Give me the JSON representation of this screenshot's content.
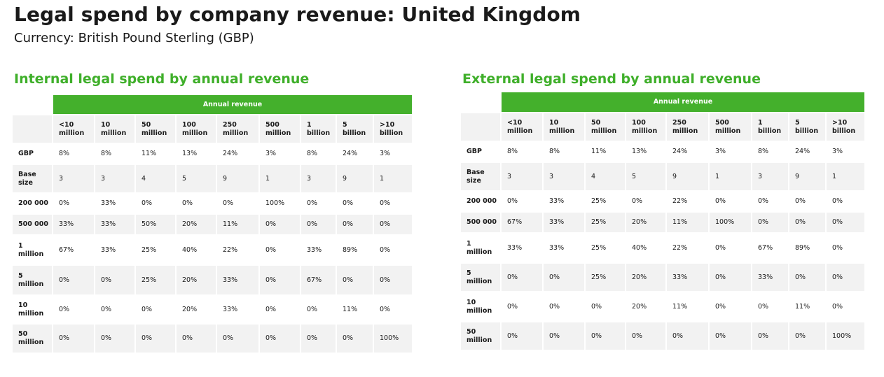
{
  "page": {
    "title": "Legal spend by company revenue: United Kingdom",
    "subtitle": "Currency: British Pound Sterling (GBP)"
  },
  "colors": {
    "accent_green": "#3faf2a",
    "header_bg_green": "#44b02c",
    "cell_grey": "#f2f2f2"
  },
  "tables": [
    {
      "title": "Internal legal spend by annual revenue",
      "group_header": "Annual revenue",
      "columns": [
        [
          "<10",
          "million"
        ],
        [
          "10",
          "million"
        ],
        [
          "50",
          "million"
        ],
        [
          "100",
          "million"
        ],
        [
          "250",
          "million"
        ],
        [
          "500",
          "million"
        ],
        [
          "1",
          "billion"
        ],
        [
          "5",
          "billion"
        ],
        [
          ">10",
          "billion"
        ]
      ],
      "rows": [
        {
          "label": [
            "GBP"
          ],
          "values": [
            "8%",
            "8%",
            "11%",
            "13%",
            "24%",
            "3%",
            "8%",
            "24%",
            "3%"
          ]
        },
        {
          "label": [
            "Base",
            "size"
          ],
          "values": [
            "3",
            "3",
            "4",
            "5",
            "9",
            "1",
            "3",
            "9",
            "1"
          ]
        },
        {
          "label": [
            "200 000"
          ],
          "values": [
            "0%",
            "33%",
            "0%",
            "0%",
            "0%",
            "100%",
            "0%",
            "0%",
            "0%"
          ]
        },
        {
          "label": [
            "500 000"
          ],
          "values": [
            "33%",
            "33%",
            "50%",
            "20%",
            "11%",
            "0%",
            "0%",
            "0%",
            "0%"
          ]
        },
        {
          "label": [
            "1",
            "million"
          ],
          "values": [
            "67%",
            "33%",
            "25%",
            "40%",
            "22%",
            "0%",
            "33%",
            "89%",
            "0%"
          ]
        },
        {
          "label": [
            "5",
            "million"
          ],
          "values": [
            "0%",
            "0%",
            "25%",
            "20%",
            "33%",
            "0%",
            "67%",
            "0%",
            "0%"
          ]
        },
        {
          "label": [
            "10",
            "million"
          ],
          "values": [
            "0%",
            "0%",
            "0%",
            "20%",
            "33%",
            "0%",
            "0%",
            "11%",
            "0%"
          ]
        },
        {
          "label": [
            "50",
            "million"
          ],
          "values": [
            "0%",
            "0%",
            "0%",
            "0%",
            "0%",
            "0%",
            "0%",
            "0%",
            "100%"
          ]
        }
      ]
    },
    {
      "title": "External legal spend by annual revenue",
      "group_header": "Annual revenue",
      "columns": [
        [
          "<10",
          "million"
        ],
        [
          "10",
          "million"
        ],
        [
          "50",
          "million"
        ],
        [
          "100",
          "million"
        ],
        [
          "250",
          "million"
        ],
        [
          "500",
          "million"
        ],
        [
          "1",
          "billion"
        ],
        [
          "5",
          "billion"
        ],
        [
          ">10",
          "billion"
        ]
      ],
      "rows": [
        {
          "label": [
            "GBP"
          ],
          "values": [
            "8%",
            "8%",
            "11%",
            "13%",
            "24%",
            "3%",
            "8%",
            "24%",
            "3%"
          ]
        },
        {
          "label": [
            "Base",
            "size"
          ],
          "values": [
            "3",
            "3",
            "4",
            "5",
            "9",
            "1",
            "3",
            "9",
            "1"
          ]
        },
        {
          "label": [
            "200 000"
          ],
          "values": [
            "0%",
            "33%",
            "25%",
            "0%",
            "22%",
            "0%",
            "0%",
            "0%",
            "0%"
          ]
        },
        {
          "label": [
            "500 000"
          ],
          "values": [
            "67%",
            "33%",
            "25%",
            "20%",
            "11%",
            "100%",
            "0%",
            "0%",
            "0%"
          ]
        },
        {
          "label": [
            "1",
            "million"
          ],
          "values": [
            "33%",
            "33%",
            "25%",
            "40%",
            "22%",
            "0%",
            "67%",
            "89%",
            "0%"
          ]
        },
        {
          "label": [
            "5",
            "million"
          ],
          "values": [
            "0%",
            "0%",
            "25%",
            "20%",
            "33%",
            "0%",
            "33%",
            "0%",
            "0%"
          ]
        },
        {
          "label": [
            "10",
            "million"
          ],
          "values": [
            "0%",
            "0%",
            "0%",
            "20%",
            "11%",
            "0%",
            "0%",
            "11%",
            "0%"
          ]
        },
        {
          "label": [
            "50",
            "million"
          ],
          "values": [
            "0%",
            "0%",
            "0%",
            "0%",
            "0%",
            "0%",
            "0%",
            "0%",
            "100%"
          ]
        }
      ]
    }
  ]
}
